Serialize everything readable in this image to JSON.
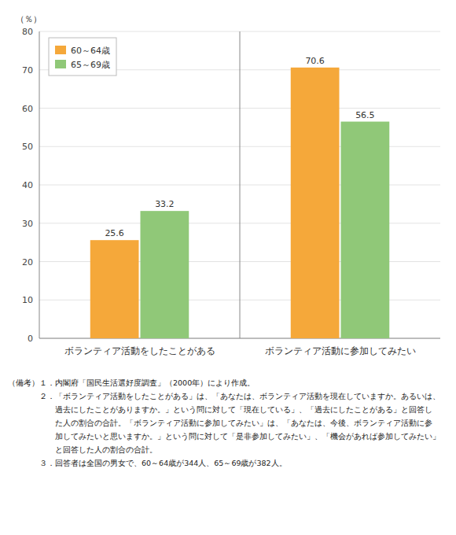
{
  "chart_data": {
    "type": "bar",
    "categories": [
      "ボランティア活動をしたことがある",
      "ボランティア活動に参加してみたい"
    ],
    "series": [
      {
        "name": "60～64歳",
        "color": "#F5A83A",
        "values": [
          25.6,
          70.6
        ]
      },
      {
        "name": "65～69歳",
        "color": "#90C878",
        "values": [
          33.2,
          56.5
        ]
      }
    ],
    "y_label": "（％）",
    "ylim": [
      0,
      80
    ],
    "yticks": [
      0,
      10,
      20,
      30,
      40,
      50,
      60,
      70,
      80
    ],
    "grid": true,
    "legend": "top-left",
    "data_labels": true,
    "annotations": [
      "（備考）１．内閣府「国民生活選好度調査」（2000年）により作成。",
      "　　　　２．「ボランティア活動をしたことがある」は、「あなたは、ボランティア活動を現在していますか。あるいは、",
      "　　　　　　過去にしたことがありますか。」という問に対して「現在している」、「過去にしたことがある」と回答し",
      "　　　　　　た人の割合の合計。「ボランティア活動に参加してみたい」は、「あなたは、今後、ボランティア活動に参",
      "　　　　　　加してみたいと思いますか。」という問に対して「是非参加してみたい」、「機会があれば参加してみたい」",
      "　　　　　　と回答した人の割合の合計。",
      "　　　　３．回答者は全国の男女で、60～64歳が344人、65～69歳が382人。"
    ]
  }
}
